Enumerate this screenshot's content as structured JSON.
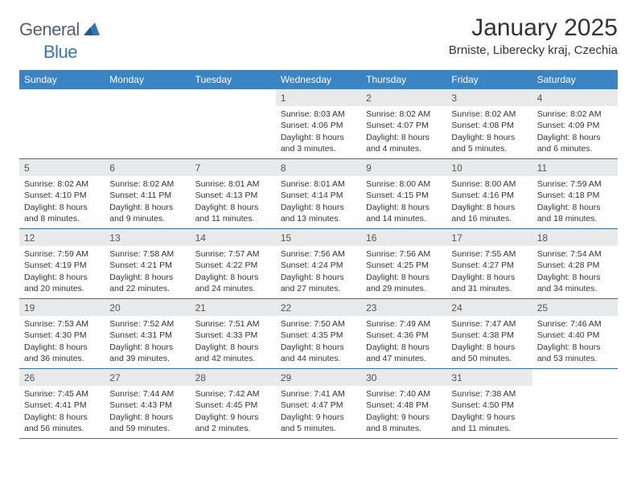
{
  "brand": {
    "name_part1": "General",
    "name_part2": "Blue"
  },
  "title": "January 2025",
  "location": "Brniste, Liberecky kraj, Czechia",
  "colors": {
    "header_bg": "#3b84c4",
    "header_text": "#ffffff",
    "daynum_bg": "#e8e9ea",
    "week_border": "#3b6fa0",
    "brand_gray": "#555f6b",
    "brand_blue": "#2f77bb",
    "text": "#333333"
  },
  "days_of_week": [
    "Sunday",
    "Monday",
    "Tuesday",
    "Wednesday",
    "Thursday",
    "Friday",
    "Saturday"
  ],
  "weeks": [
    [
      {
        "n": "",
        "sr": "",
        "ss": "",
        "d1": "",
        "d2": ""
      },
      {
        "n": "",
        "sr": "",
        "ss": "",
        "d1": "",
        "d2": ""
      },
      {
        "n": "",
        "sr": "",
        "ss": "",
        "d1": "",
        "d2": ""
      },
      {
        "n": "1",
        "sr": "Sunrise: 8:03 AM",
        "ss": "Sunset: 4:06 PM",
        "d1": "Daylight: 8 hours",
        "d2": "and 3 minutes."
      },
      {
        "n": "2",
        "sr": "Sunrise: 8:02 AM",
        "ss": "Sunset: 4:07 PM",
        "d1": "Daylight: 8 hours",
        "d2": "and 4 minutes."
      },
      {
        "n": "3",
        "sr": "Sunrise: 8:02 AM",
        "ss": "Sunset: 4:08 PM",
        "d1": "Daylight: 8 hours",
        "d2": "and 5 minutes."
      },
      {
        "n": "4",
        "sr": "Sunrise: 8:02 AM",
        "ss": "Sunset: 4:09 PM",
        "d1": "Daylight: 8 hours",
        "d2": "and 6 minutes."
      }
    ],
    [
      {
        "n": "5",
        "sr": "Sunrise: 8:02 AM",
        "ss": "Sunset: 4:10 PM",
        "d1": "Daylight: 8 hours",
        "d2": "and 8 minutes."
      },
      {
        "n": "6",
        "sr": "Sunrise: 8:02 AM",
        "ss": "Sunset: 4:11 PM",
        "d1": "Daylight: 8 hours",
        "d2": "and 9 minutes."
      },
      {
        "n": "7",
        "sr": "Sunrise: 8:01 AM",
        "ss": "Sunset: 4:13 PM",
        "d1": "Daylight: 8 hours",
        "d2": "and 11 minutes."
      },
      {
        "n": "8",
        "sr": "Sunrise: 8:01 AM",
        "ss": "Sunset: 4:14 PM",
        "d1": "Daylight: 8 hours",
        "d2": "and 13 minutes."
      },
      {
        "n": "9",
        "sr": "Sunrise: 8:00 AM",
        "ss": "Sunset: 4:15 PM",
        "d1": "Daylight: 8 hours",
        "d2": "and 14 minutes."
      },
      {
        "n": "10",
        "sr": "Sunrise: 8:00 AM",
        "ss": "Sunset: 4:16 PM",
        "d1": "Daylight: 8 hours",
        "d2": "and 16 minutes."
      },
      {
        "n": "11",
        "sr": "Sunrise: 7:59 AM",
        "ss": "Sunset: 4:18 PM",
        "d1": "Daylight: 8 hours",
        "d2": "and 18 minutes."
      }
    ],
    [
      {
        "n": "12",
        "sr": "Sunrise: 7:59 AM",
        "ss": "Sunset: 4:19 PM",
        "d1": "Daylight: 8 hours",
        "d2": "and 20 minutes."
      },
      {
        "n": "13",
        "sr": "Sunrise: 7:58 AM",
        "ss": "Sunset: 4:21 PM",
        "d1": "Daylight: 8 hours",
        "d2": "and 22 minutes."
      },
      {
        "n": "14",
        "sr": "Sunrise: 7:57 AM",
        "ss": "Sunset: 4:22 PM",
        "d1": "Daylight: 8 hours",
        "d2": "and 24 minutes."
      },
      {
        "n": "15",
        "sr": "Sunrise: 7:56 AM",
        "ss": "Sunset: 4:24 PM",
        "d1": "Daylight: 8 hours",
        "d2": "and 27 minutes."
      },
      {
        "n": "16",
        "sr": "Sunrise: 7:56 AM",
        "ss": "Sunset: 4:25 PM",
        "d1": "Daylight: 8 hours",
        "d2": "and 29 minutes."
      },
      {
        "n": "17",
        "sr": "Sunrise: 7:55 AM",
        "ss": "Sunset: 4:27 PM",
        "d1": "Daylight: 8 hours",
        "d2": "and 31 minutes."
      },
      {
        "n": "18",
        "sr": "Sunrise: 7:54 AM",
        "ss": "Sunset: 4:28 PM",
        "d1": "Daylight: 8 hours",
        "d2": "and 34 minutes."
      }
    ],
    [
      {
        "n": "19",
        "sr": "Sunrise: 7:53 AM",
        "ss": "Sunset: 4:30 PM",
        "d1": "Daylight: 8 hours",
        "d2": "and 36 minutes."
      },
      {
        "n": "20",
        "sr": "Sunrise: 7:52 AM",
        "ss": "Sunset: 4:31 PM",
        "d1": "Daylight: 8 hours",
        "d2": "and 39 minutes."
      },
      {
        "n": "21",
        "sr": "Sunrise: 7:51 AM",
        "ss": "Sunset: 4:33 PM",
        "d1": "Daylight: 8 hours",
        "d2": "and 42 minutes."
      },
      {
        "n": "22",
        "sr": "Sunrise: 7:50 AM",
        "ss": "Sunset: 4:35 PM",
        "d1": "Daylight: 8 hours",
        "d2": "and 44 minutes."
      },
      {
        "n": "23",
        "sr": "Sunrise: 7:49 AM",
        "ss": "Sunset: 4:36 PM",
        "d1": "Daylight: 8 hours",
        "d2": "and 47 minutes."
      },
      {
        "n": "24",
        "sr": "Sunrise: 7:47 AM",
        "ss": "Sunset: 4:38 PM",
        "d1": "Daylight: 8 hours",
        "d2": "and 50 minutes."
      },
      {
        "n": "25",
        "sr": "Sunrise: 7:46 AM",
        "ss": "Sunset: 4:40 PM",
        "d1": "Daylight: 8 hours",
        "d2": "and 53 minutes."
      }
    ],
    [
      {
        "n": "26",
        "sr": "Sunrise: 7:45 AM",
        "ss": "Sunset: 4:41 PM",
        "d1": "Daylight: 8 hours",
        "d2": "and 56 minutes."
      },
      {
        "n": "27",
        "sr": "Sunrise: 7:44 AM",
        "ss": "Sunset: 4:43 PM",
        "d1": "Daylight: 8 hours",
        "d2": "and 59 minutes."
      },
      {
        "n": "28",
        "sr": "Sunrise: 7:42 AM",
        "ss": "Sunset: 4:45 PM",
        "d1": "Daylight: 9 hours",
        "d2": "and 2 minutes."
      },
      {
        "n": "29",
        "sr": "Sunrise: 7:41 AM",
        "ss": "Sunset: 4:47 PM",
        "d1": "Daylight: 9 hours",
        "d2": "and 5 minutes."
      },
      {
        "n": "30",
        "sr": "Sunrise: 7:40 AM",
        "ss": "Sunset: 4:48 PM",
        "d1": "Daylight: 9 hours",
        "d2": "and 8 minutes."
      },
      {
        "n": "31",
        "sr": "Sunrise: 7:38 AM",
        "ss": "Sunset: 4:50 PM",
        "d1": "Daylight: 9 hours",
        "d2": "and 11 minutes."
      },
      {
        "n": "",
        "sr": "",
        "ss": "",
        "d1": "",
        "d2": ""
      }
    ]
  ]
}
